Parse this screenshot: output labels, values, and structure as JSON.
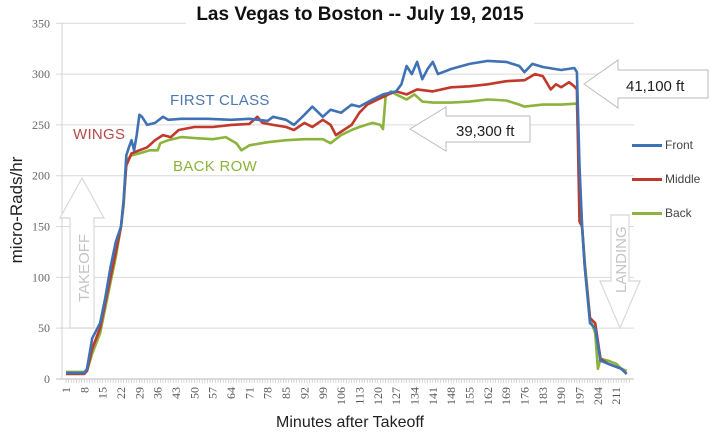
{
  "chart_data": {
    "type": "line",
    "title": "Las Vegas to Boston -- July 19, 2015",
    "xlabel": "Minutes after Takeoff",
    "ylabel": "micro-Rads/hr",
    "ylim": [
      0,
      350
    ],
    "yticks": [
      0,
      50,
      100,
      150,
      200,
      250,
      300,
      350
    ],
    "xticks": [
      1,
      8,
      15,
      22,
      29,
      36,
      43,
      50,
      57,
      64,
      71,
      78,
      85,
      92,
      99,
      106,
      113,
      120,
      127,
      134,
      141,
      148,
      155,
      162,
      169,
      176,
      183,
      190,
      197,
      204,
      211
    ],
    "xlim": [
      1,
      216
    ],
    "grid": "horizontal",
    "legend_position": "right",
    "series": [
      {
        "name": "Front",
        "color": "#3f72b5",
        "points": [
          [
            1,
            6
          ],
          [
            8,
            6
          ],
          [
            9,
            10
          ],
          [
            11,
            40
          ],
          [
            14,
            55
          ],
          [
            16,
            80
          ],
          [
            18,
            110
          ],
          [
            20,
            135
          ],
          [
            22,
            150
          ],
          [
            23,
            175
          ],
          [
            24,
            220
          ],
          [
            25,
            228
          ],
          [
            26,
            235
          ],
          [
            27,
            225
          ],
          [
            28,
            240
          ],
          [
            29,
            260
          ],
          [
            30,
            258
          ],
          [
            32,
            250
          ],
          [
            35,
            252
          ],
          [
            38,
            258
          ],
          [
            40,
            255
          ],
          [
            45,
            256
          ],
          [
            55,
            256
          ],
          [
            64,
            255
          ],
          [
            71,
            256
          ],
          [
            78,
            254
          ],
          [
            80,
            258
          ],
          [
            85,
            255
          ],
          [
            88,
            250
          ],
          [
            92,
            260
          ],
          [
            95,
            268
          ],
          [
            99,
            258
          ],
          [
            102,
            265
          ],
          [
            106,
            262
          ],
          [
            110,
            270
          ],
          [
            113,
            268
          ],
          [
            118,
            275
          ],
          [
            122,
            280
          ],
          [
            127,
            283
          ],
          [
            129,
            290
          ],
          [
            131,
            308
          ],
          [
            133,
            300
          ],
          [
            135,
            312
          ],
          [
            137,
            295
          ],
          [
            139,
            305
          ],
          [
            141,
            312
          ],
          [
            143,
            300
          ],
          [
            148,
            305
          ],
          [
            155,
            310
          ],
          [
            162,
            313
          ],
          [
            169,
            312
          ],
          [
            174,
            308
          ],
          [
            176,
            302
          ],
          [
            179,
            310
          ],
          [
            183,
            307
          ],
          [
            190,
            304
          ],
          [
            195,
            306
          ],
          [
            196,
            302
          ],
          [
            197,
            210
          ],
          [
            198,
            150
          ],
          [
            199,
            110
          ],
          [
            201,
            55
          ],
          [
            203,
            50
          ],
          [
            205,
            18
          ],
          [
            208,
            15
          ],
          [
            211,
            12
          ],
          [
            213,
            10
          ],
          [
            215,
            5
          ]
        ]
      },
      {
        "name": "Middle",
        "color": "#c0392b",
        "points": [
          [
            1,
            5
          ],
          [
            8,
            5
          ],
          [
            9,
            8
          ],
          [
            11,
            30
          ],
          [
            14,
            50
          ],
          [
            16,
            75
          ],
          [
            18,
            100
          ],
          [
            20,
            125
          ],
          [
            22,
            150
          ],
          [
            23,
            175
          ],
          [
            24,
            210
          ],
          [
            26,
            222
          ],
          [
            29,
            225
          ],
          [
            32,
            228
          ],
          [
            35,
            235
          ],
          [
            38,
            240
          ],
          [
            41,
            238
          ],
          [
            44,
            245
          ],
          [
            50,
            248
          ],
          [
            57,
            248
          ],
          [
            64,
            250
          ],
          [
            71,
            251
          ],
          [
            74,
            258
          ],
          [
            76,
            252
          ],
          [
            80,
            250
          ],
          [
            85,
            248
          ],
          [
            88,
            245
          ],
          [
            92,
            252
          ],
          [
            95,
            248
          ],
          [
            99,
            255
          ],
          [
            102,
            250
          ],
          [
            104,
            240
          ],
          [
            107,
            245
          ],
          [
            110,
            250
          ],
          [
            113,
            262
          ],
          [
            116,
            270
          ],
          [
            120,
            275
          ],
          [
            124,
            280
          ],
          [
            127,
            283
          ],
          [
            131,
            280
          ],
          [
            135,
            285
          ],
          [
            141,
            283
          ],
          [
            148,
            287
          ],
          [
            155,
            288
          ],
          [
            162,
            290
          ],
          [
            169,
            293
          ],
          [
            176,
            294
          ],
          [
            180,
            300
          ],
          [
            183,
            298
          ],
          [
            186,
            285
          ],
          [
            188,
            290
          ],
          [
            190,
            287
          ],
          [
            193,
            292
          ],
          [
            195,
            288
          ],
          [
            196,
            285
          ],
          [
            197,
            155
          ],
          [
            198,
            150
          ],
          [
            199,
            110
          ],
          [
            201,
            60
          ],
          [
            203,
            55
          ],
          [
            205,
            20
          ],
          [
            208,
            15
          ],
          [
            211,
            12
          ],
          [
            213,
            10
          ],
          [
            215,
            5
          ]
        ]
      },
      {
        "name": "Back",
        "color": "#8cb33c",
        "points": [
          [
            1,
            7
          ],
          [
            8,
            7
          ],
          [
            9,
            8
          ],
          [
            11,
            25
          ],
          [
            14,
            45
          ],
          [
            16,
            70
          ],
          [
            18,
            95
          ],
          [
            20,
            120
          ],
          [
            22,
            150
          ],
          [
            23,
            170
          ],
          [
            24,
            215
          ],
          [
            26,
            220
          ],
          [
            29,
            222
          ],
          [
            33,
            225
          ],
          [
            36,
            225
          ],
          [
            37,
            232
          ],
          [
            40,
            235
          ],
          [
            45,
            238
          ],
          [
            50,
            237
          ],
          [
            57,
            236
          ],
          [
            62,
            238
          ],
          [
            64,
            235
          ],
          [
            66,
            232
          ],
          [
            68,
            225
          ],
          [
            71,
            230
          ],
          [
            78,
            233
          ],
          [
            85,
            235
          ],
          [
            92,
            236
          ],
          [
            99,
            236
          ],
          [
            102,
            232
          ],
          [
            106,
            240
          ],
          [
            110,
            245
          ],
          [
            113,
            248
          ],
          [
            118,
            252
          ],
          [
            121,
            250
          ],
          [
            122,
            246
          ],
          [
            123,
            278
          ],
          [
            125,
            283
          ],
          [
            127,
            280
          ],
          [
            131,
            275
          ],
          [
            134,
            280
          ],
          [
            137,
            273
          ],
          [
            141,
            272
          ],
          [
            148,
            272
          ],
          [
            155,
            273
          ],
          [
            162,
            275
          ],
          [
            169,
            274
          ],
          [
            174,
            270
          ],
          [
            176,
            268
          ],
          [
            183,
            270
          ],
          [
            190,
            270
          ],
          [
            196,
            271
          ],
          [
            197,
            200
          ],
          [
            198,
            150
          ],
          [
            199,
            115
          ],
          [
            201,
            60
          ],
          [
            203,
            45
          ],
          [
            204,
            10
          ],
          [
            205,
            20
          ],
          [
            208,
            18
          ],
          [
            211,
            15
          ],
          [
            213,
            10
          ],
          [
            215,
            8
          ]
        ]
      }
    ],
    "annotations": [
      {
        "text": "FIRST CLASS",
        "color": "#4a78b0"
      },
      {
        "text": "WINGS",
        "color": "#b24a4a"
      },
      {
        "text": "BACK ROW",
        "color": "#8cb33c"
      },
      {
        "text": "39,300 ft",
        "type": "callout-arrow-left"
      },
      {
        "text": "41,100 ft",
        "type": "callout-arrow-left"
      },
      {
        "text": "TAKEOFF",
        "type": "arrow-up"
      },
      {
        "text": "LANDING",
        "type": "arrow-down"
      }
    ]
  },
  "labels": {
    "title": "Las Vegas to Boston -- July 19, 2015",
    "ylabel": "micro-Rads/hr",
    "xlabel": "Minutes after Takeoff",
    "first_class": "FIRST CLASS",
    "wings": "WINGS",
    "back_row": "BACK ROW",
    "alt1": "39,300 ft",
    "alt2": "41,100 ft",
    "takeoff": "TAKEOFF",
    "landing": "LANDING",
    "legend": [
      "Front",
      "Middle",
      "Back"
    ]
  }
}
